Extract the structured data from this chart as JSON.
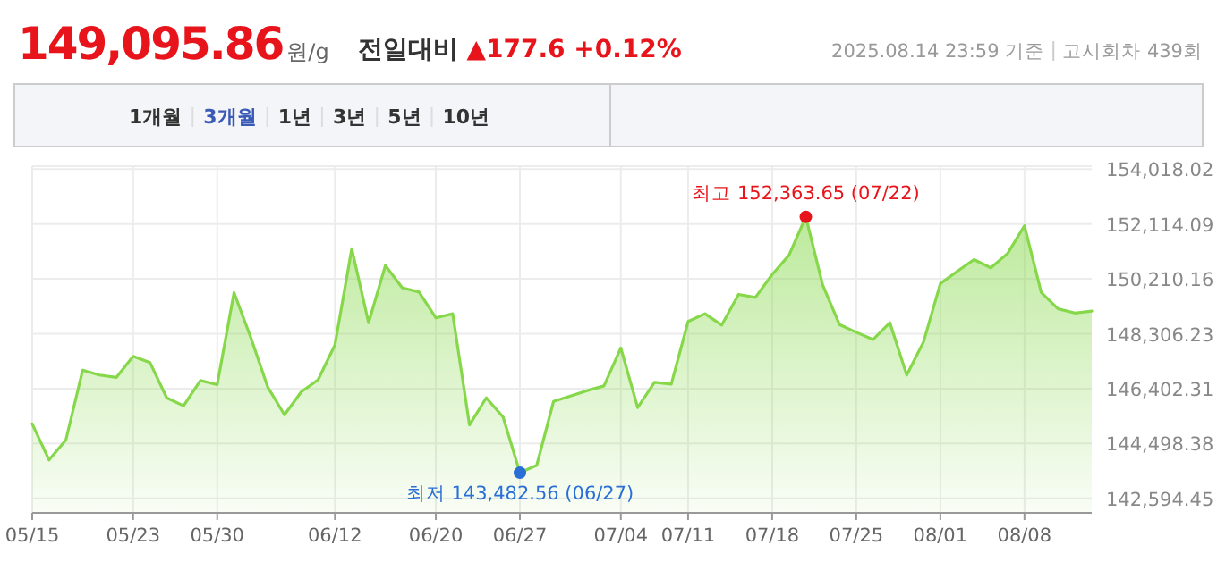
{
  "chart_data": {
    "type": "area",
    "title": "149,095.86",
    "subtitle": "전일대비 ▲177.6 +0.12%",
    "annotations": [
      "원/g",
      "2025.08.14 23:59 기준",
      "고시회차 439회",
      "1개월",
      "3개월",
      "1년",
      "3년",
      "5년",
      "10년",
      {
        "text": "최고 152,363.65 (07/22)",
        "y": 152363.65
      },
      {
        "text": "최저 143,482.56 (06/27)",
        "x": "06/27",
        "y": 143482.56
      }
    ],
    "categories": [
      "05/15",
      null,
      null,
      null,
      null,
      null,
      "05/23",
      null,
      null,
      null,
      null,
      "05/30",
      null,
      null,
      null,
      null,
      null,
      null,
      "06/12",
      null,
      null,
      null,
      null,
      null,
      "06/20",
      null,
      null,
      null,
      null,
      "06/27",
      null,
      null,
      null,
      null,
      null,
      "07/04",
      null,
      null,
      null,
      "07/11",
      null,
      null,
      null,
      null,
      "07/18",
      null,
      null,
      null,
      null,
      "07/25",
      null,
      null,
      null,
      null,
      "08/01",
      null,
      null,
      null,
      null,
      "08/08",
      null,
      null,
      null,
      null
    ],
    "series": [
      {
        "color": "#86d84a",
        "values": [
          145181,
          143928,
          144617,
          147041,
          146872,
          146791,
          147523,
          147310,
          146083,
          145807,
          146684,
          146540,
          149734,
          148168,
          146459,
          145494,
          146290,
          146709,
          147918,
          151256,
          148688,
          150674,
          149903,
          149753,
          148857,
          149001,
          145143,
          146083,
          145413,
          143482.56,
          143740,
          145957,
          146146,
          146333,
          146496,
          147812,
          145745,
          146622,
          146559,
          148732,
          149001,
          148607,
          149672,
          149565,
          150360,
          151031,
          152363.65,
          150004,
          148626,
          148356,
          148106,
          148688,
          146872,
          148024,
          150047,
          150467,
          150880,
          150592,
          151093,
          152051,
          149734,
          149170,
          149026,
          149096
        ]
      }
    ],
    "ylim": [
      142090,
      154120
    ],
    "yticks": [
      {
        "value": 142594.45,
        "label": "142,594.45"
      },
      {
        "value": 144498.38,
        "label": "144,498.38"
      },
      {
        "value": 146402.31,
        "label": "146,402.31"
      },
      {
        "value": 148306.23,
        "label": "148,306.23"
      },
      {
        "value": 150210.16,
        "label": "150,210.16"
      },
      {
        "value": 152114.09,
        "label": "152,114.09"
      },
      {
        "value": 154018.02,
        "label": "154,018.02"
      }
    ],
    "grid": true
  }
}
